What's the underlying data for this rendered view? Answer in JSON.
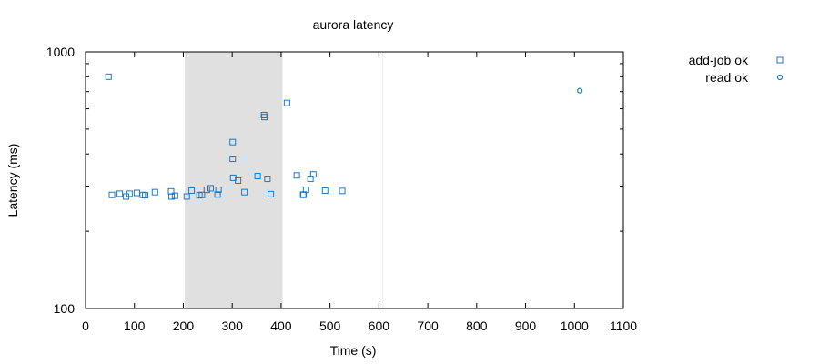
{
  "chart_data": {
    "type": "scatter",
    "title": "aurora latency",
    "xlabel": "Time (s)",
    "ylabel": "Latency (ms)",
    "xlim": [
      0,
      1100
    ],
    "ylim": [
      100,
      1000
    ],
    "yscale": "log",
    "x_ticks": [
      0,
      100,
      200,
      300,
      400,
      500,
      600,
      700,
      800,
      900,
      1000,
      1100
    ],
    "x_tick_labels": [
      "0",
      "100",
      "200",
      "300",
      "400",
      "500",
      "600",
      "700",
      "800",
      "900",
      "1000",
      "1100"
    ],
    "y_ticks": [
      100,
      1000
    ],
    "y_tick_labels": [
      "100",
      "1000"
    ],
    "grid": false,
    "legend_position": "outside-top-right",
    "shaded_regions": [
      {
        "x_start": 203,
        "x_end": 403,
        "color": "#e0e0e0"
      }
    ],
    "vertical_lines": [
      {
        "x": 608,
        "color": "#eeeeee"
      }
    ],
    "series": [
      {
        "name": "add-job ok",
        "marker": "square",
        "color": "#1a7acb",
        "points": [
          [
            47,
            800
          ],
          [
            54,
            277
          ],
          [
            70,
            280
          ],
          [
            83,
            273
          ],
          [
            90,
            280
          ],
          [
            105,
            282
          ],
          [
            117,
            277
          ],
          [
            122,
            276
          ],
          [
            142,
            284
          ],
          [
            175,
            286
          ],
          [
            176,
            273
          ],
          [
            183,
            275
          ],
          [
            207,
            273
          ],
          [
            217,
            288
          ],
          [
            233,
            276
          ],
          [
            238,
            277
          ],
          [
            248,
            290
          ],
          [
            256,
            294
          ],
          [
            270,
            278
          ],
          [
            272,
            290
          ],
          [
            301,
            445
          ],
          [
            301,
            383
          ],
          [
            302,
            323
          ],
          [
            312,
            315
          ],
          [
            325,
            284
          ],
          [
            352,
            328
          ],
          [
            365,
            567
          ],
          [
            366,
            557
          ],
          [
            372,
            320
          ],
          [
            379,
            279
          ],
          [
            412,
            632
          ],
          [
            432,
            330
          ],
          [
            445,
            277
          ],
          [
            446,
            278
          ],
          [
            451,
            290
          ],
          [
            460,
            320
          ],
          [
            466,
            333
          ],
          [
            490,
            288
          ],
          [
            525,
            287
          ]
        ]
      },
      {
        "name": "read ok",
        "marker": "circle",
        "color": "#1a7acb",
        "points": [
          [
            1011,
            706
          ]
        ]
      }
    ]
  }
}
